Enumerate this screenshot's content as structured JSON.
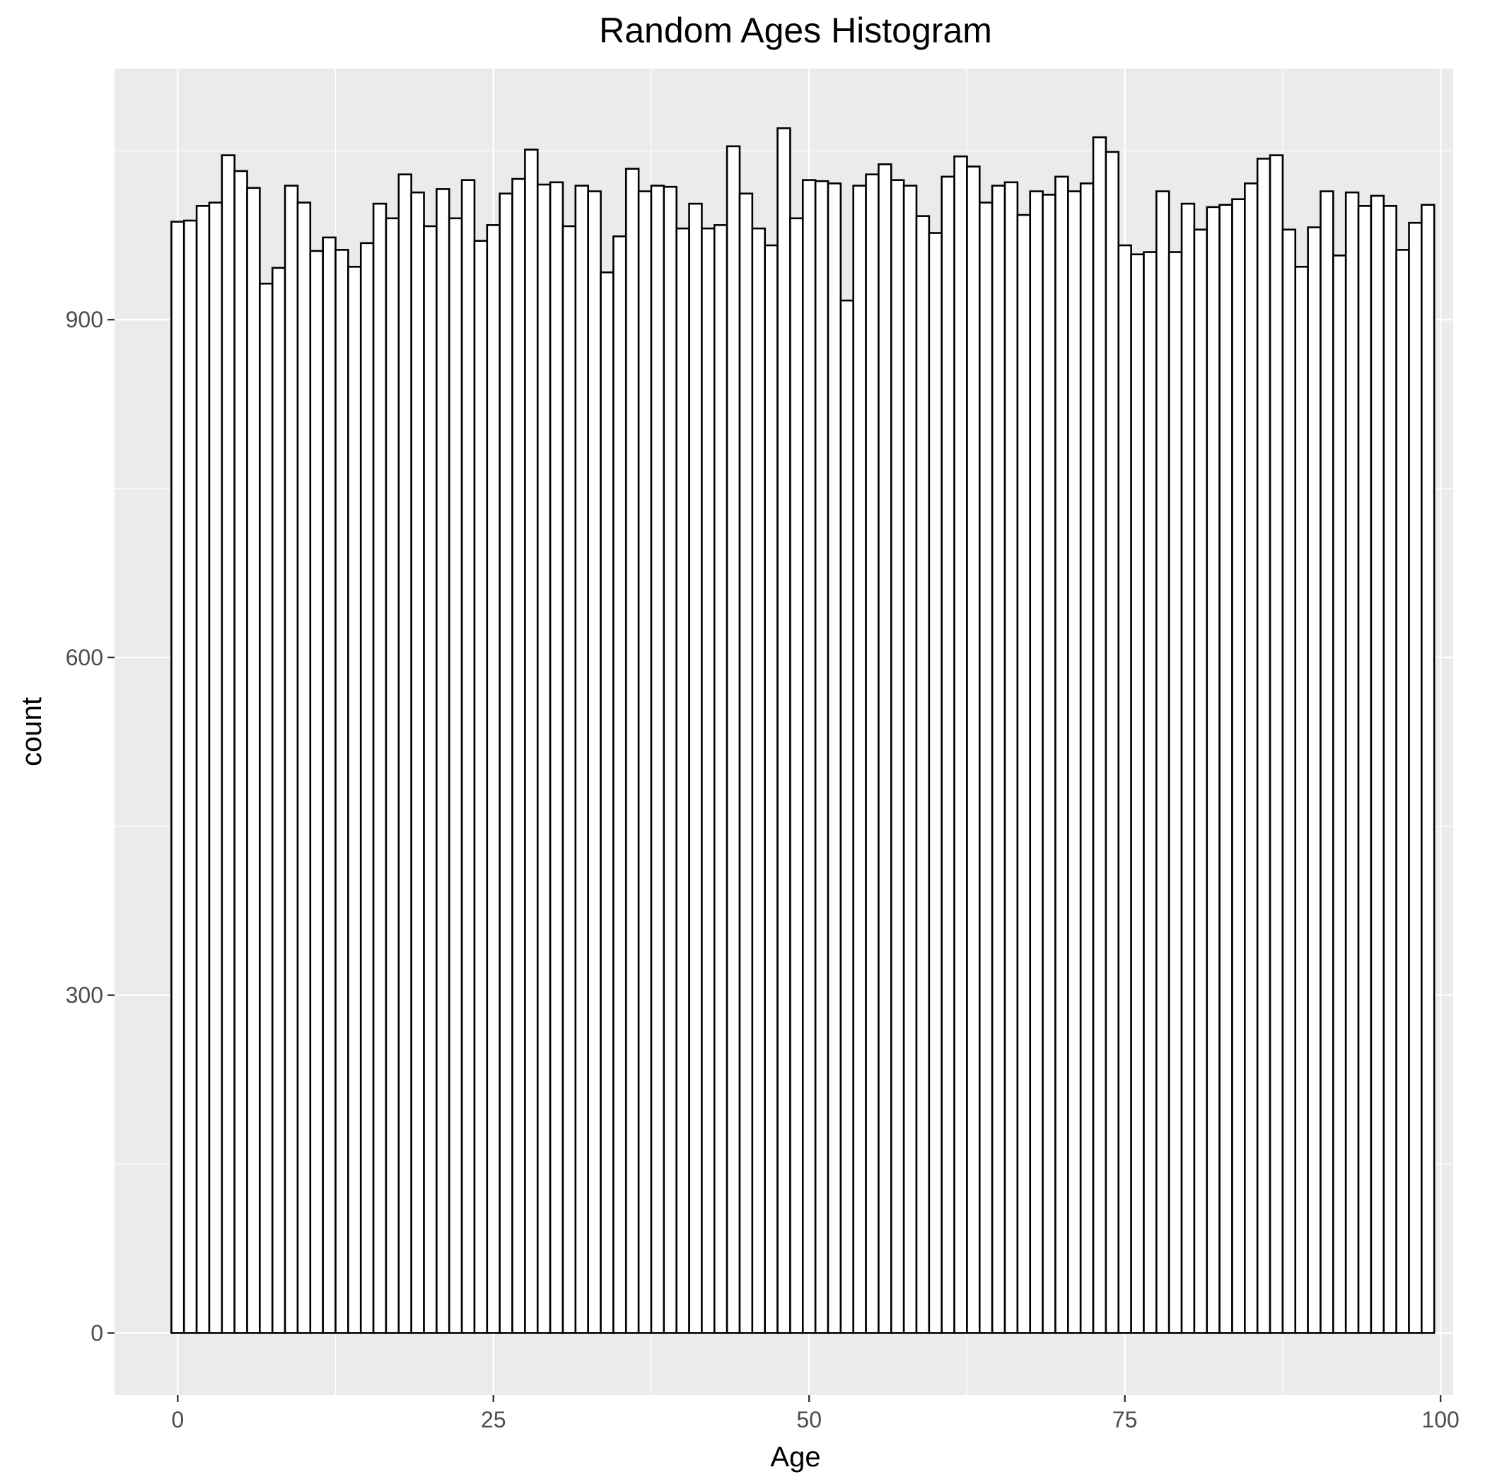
{
  "chart_data": {
    "type": "bar",
    "title": "Random Ages Histogram",
    "xlabel": "Age",
    "ylabel": "count",
    "xlim": [
      -5,
      101
    ],
    "ylim": [
      -55,
      1123
    ],
    "x_ticks": [
      0,
      25,
      50,
      75,
      100
    ],
    "x_tick_labels": [
      "0",
      "25",
      "50",
      "75",
      "100"
    ],
    "y_ticks": [
      0,
      300,
      600,
      900
    ],
    "y_tick_labels": [
      "0",
      "300",
      "600",
      "900"
    ],
    "bin_width": 1,
    "bin_start": -0.5,
    "bar_fill": "#ffffff",
    "bar_outline": "#000000",
    "panel_background": "#ebebeb",
    "grid": true,
    "grid_color": "#ffffff",
    "values": [
      987,
      988,
      1001,
      1004,
      1046,
      1032,
      1017,
      932,
      946,
      1019,
      1004,
      961,
      973,
      962,
      947,
      968,
      1003,
      990,
      1029,
      1013,
      983,
      1016,
      990,
      1024,
      970,
      984,
      1012,
      1025,
      1051,
      1020,
      1022,
      983,
      1019,
      1014,
      942,
      974,
      1034,
      1014,
      1019,
      1018,
      981,
      1003,
      981,
      984,
      1054,
      1012,
      981,
      966,
      1070,
      990,
      1024,
      1023,
      1021,
      917,
      1019,
      1029,
      1038,
      1024,
      1019,
      992,
      977,
      1027,
      1045,
      1036,
      1004,
      1019,
      1022,
      993,
      1014,
      1011,
      1027,
      1014,
      1021,
      1062,
      1049,
      966,
      958,
      960,
      1014,
      960,
      1003,
      980,
      1000,
      1002,
      1007,
      1021,
      1043,
      1046,
      980,
      947,
      982,
      1014,
      957,
      1013,
      1001,
      1010,
      1001,
      962,
      986,
      1002
    ]
  }
}
